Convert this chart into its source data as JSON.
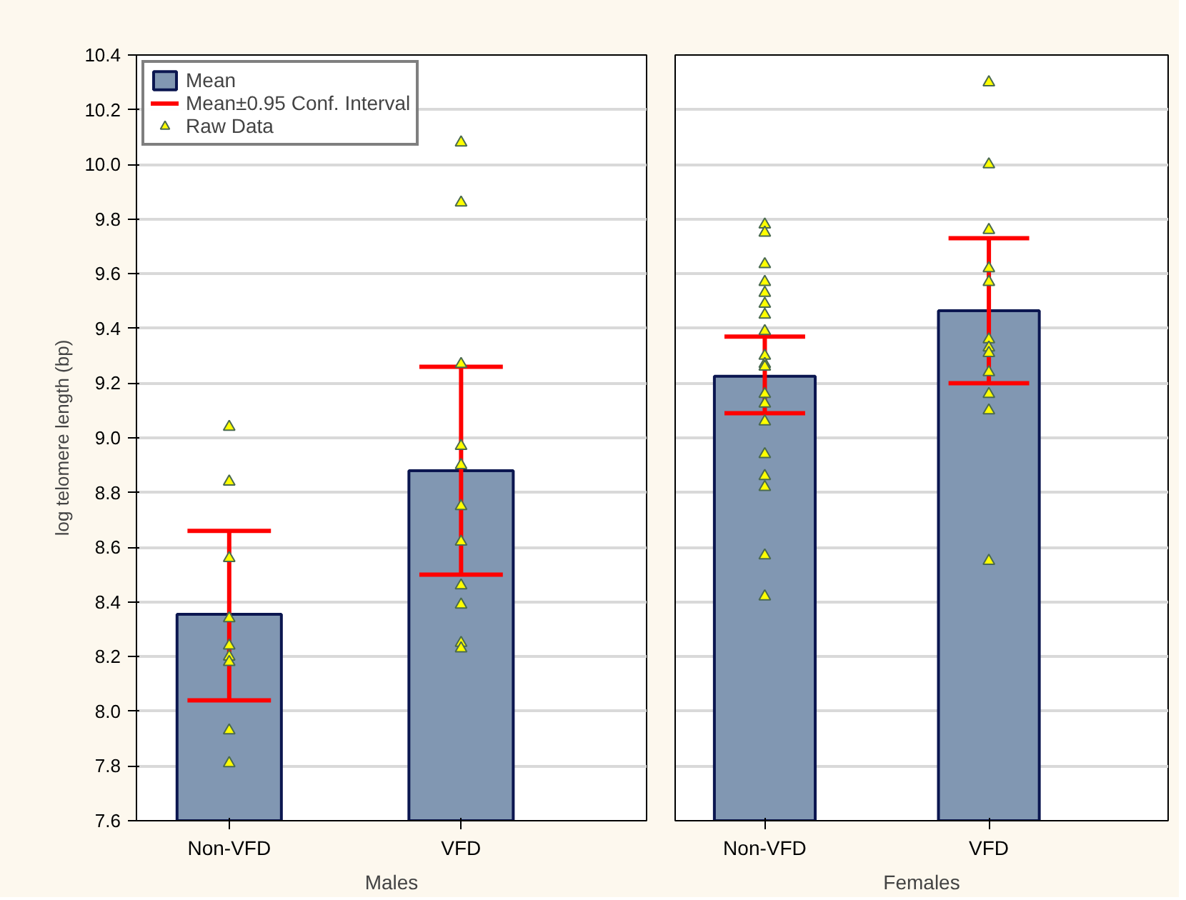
{
  "chart_data": [
    {
      "type": "bar",
      "xlabel": "Males",
      "ylabel": "log telomere length (bp)",
      "categories": [
        "Non-VFD",
        "VFD"
      ],
      "ylim": [
        7.6,
        10.4
      ],
      "yticks": [
        7.6,
        7.8,
        {
          "value": 8.0,
          "label": "8.0"
        },
        8.2,
        8.4,
        8.6,
        8.8,
        {
          "value": 9.0,
          "label": "9.0"
        },
        9.2,
        9.4,
        9.6,
        9.8,
        {
          "value": 10.0,
          "label": "10.0"
        },
        10.2,
        10.4
      ],
      "grid": "y",
      "legend": "top left",
      "annotations": [
        "Mean±0.95 Conf. Interval"
      ],
      "series": [
        {
          "name": "Mean",
          "color": "#8197b2",
          "values": [
            8.355,
            8.88
          ],
          "errors": [
            [
              8.04,
              8.66
            ],
            [
              8.5,
              9.26
            ]
          ]
        },
        {
          "name": "Raw Data",
          "type": "scatter",
          "color": "#ffff00",
          "marker": "triangle",
          "x": [
            "Non-VFD",
            "Non-VFD",
            "Non-VFD",
            "Non-VFD",
            "Non-VFD",
            "Non-VFD",
            "Non-VFD",
            "Non-VFD",
            "Non-VFD",
            "VFD",
            "VFD",
            "VFD",
            "VFD",
            "VFD",
            "VFD",
            "VFD",
            "VFD",
            "VFD",
            "VFD",
            "VFD"
          ],
          "values": [
            9.04,
            8.84,
            8.56,
            8.34,
            8.24,
            8.2,
            8.18,
            7.93,
            7.81,
            10.08,
            9.86,
            9.27,
            8.97,
            8.9,
            8.75,
            8.62,
            8.46,
            8.39,
            8.25,
            8.23
          ]
        }
      ]
    },
    {
      "type": "bar",
      "xlabel": "Females",
      "categories": [
        "Non-VFD",
        "VFD"
      ],
      "ylim": [
        7.6,
        10.4
      ],
      "yticks": [
        7.6,
        7.8,
        8.0,
        8.2,
        8.4,
        8.6,
        8.8,
        9.0,
        9.2,
        9.4,
        9.6,
        9.8,
        10.0,
        10.2,
        10.4
      ],
      "grid": "y",
      "tick_labels": "x",
      "series": [
        {
          "color": "#8197b2",
          "values": [
            9.225,
            9.465
          ],
          "errors": [
            [
              9.09,
              9.37
            ],
            [
              9.2,
              9.73
            ]
          ]
        },
        {
          "type": "scatter",
          "color": "#ffff00",
          "marker": "triangle",
          "x": [
            "Non-VFD",
            "Non-VFD",
            "Non-VFD",
            "Non-VFD",
            "Non-VFD",
            "Non-VFD",
            "Non-VFD",
            "Non-VFD",
            "Non-VFD",
            "Non-VFD",
            "Non-VFD",
            "Non-VFD",
            "Non-VFD",
            "Non-VFD",
            "Non-VFD",
            "Non-VFD",
            "Non-VFD",
            "Non-VFD",
            "Non-VFD",
            "VFD",
            "VFD",
            "VFD",
            "VFD",
            "VFD",
            "VFD",
            "VFD",
            "VFD",
            "VFD",
            "VFD",
            "VFD",
            "VFD"
          ],
          "values": [
            9.78,
            9.75,
            9.635,
            9.57,
            9.53,
            9.49,
            9.45,
            9.39,
            9.3,
            9.27,
            9.26,
            9.16,
            9.125,
            9.06,
            8.94,
            8.86,
            8.82,
            8.57,
            8.42,
            10.3,
            10.0,
            9.76,
            9.62,
            9.57,
            9.36,
            9.33,
            9.31,
            9.24,
            9.16,
            9.1,
            8.55
          ]
        }
      ]
    }
  ]
}
